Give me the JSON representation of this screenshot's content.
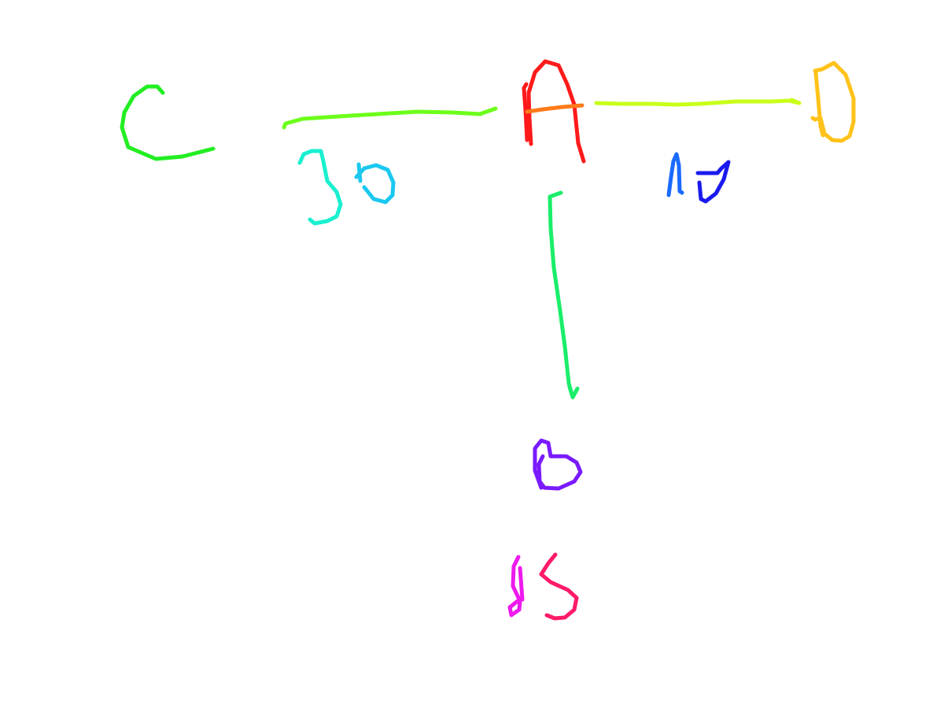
{
  "diagram": {
    "nodes": [
      {
        "id": "A",
        "label": "A",
        "color": "#ff1a1a",
        "accent": "#ff7a1a"
      },
      {
        "id": "B",
        "label": "B",
        "color": "#7a1aff"
      },
      {
        "id": "C",
        "label": "C",
        "color": "#22ee22"
      },
      {
        "id": "D",
        "label": "D",
        "color": "#ffc21a"
      }
    ],
    "edges": [
      {
        "from": "A",
        "to": "C",
        "weight": "30",
        "color": "#6cff1a",
        "directed": false,
        "weight_colors": [
          "#1af0d0",
          "#1ac8f0"
        ]
      },
      {
        "from": "A",
        "to": "D",
        "weight": "17",
        "color": "#c8ff1a",
        "directed": true,
        "weight_colors": [
          "#1a6aff",
          "#1a1aee"
        ]
      },
      {
        "from": "A",
        "to": "B",
        "weight": "25",
        "color": "#1aee6a",
        "directed": true,
        "weight_colors": [
          "#ee1aee",
          "#ff1a6a"
        ]
      }
    ]
  }
}
